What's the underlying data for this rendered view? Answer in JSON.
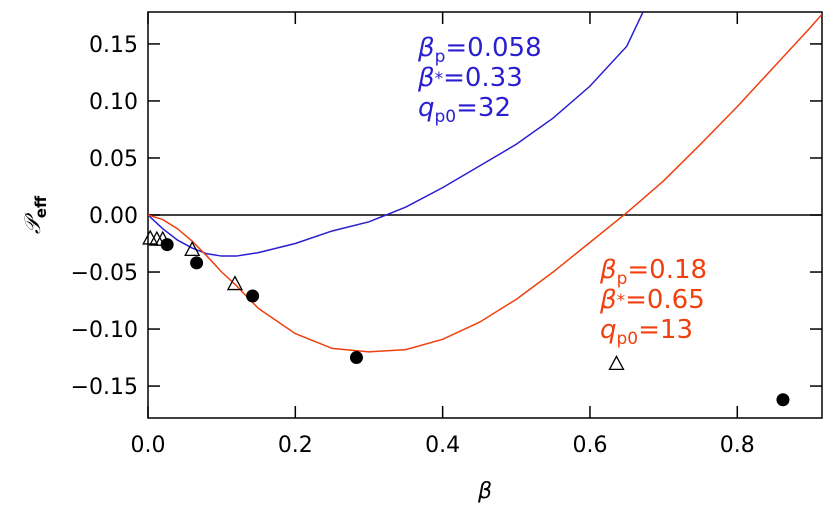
{
  "chart_data": {
    "type": "line",
    "xlabel": "β",
    "ylabel": {
      "symbol": "𝒫",
      "sub": "eff"
    },
    "xlim": [
      0,
      0.915
    ],
    "ylim": [
      -0.178,
      0.178
    ],
    "xticks": [
      {
        "value": 0,
        "label": "0.0"
      },
      0.2,
      0.4,
      0.6,
      0.8
    ],
    "yticks": [
      {
        "value": -0.15,
        "label": "−0.15"
      },
      {
        "value": -0.1,
        "label": "−0.10"
      },
      {
        "value": -0.05,
        "label": "−0.05"
      },
      {
        "value": 0,
        "label": "0.00"
      },
      {
        "value": 0.05,
        "label": "0.05"
      },
      {
        "value": 0.1,
        "label": "0.10"
      },
      0.15
    ],
    "hline": 0,
    "series": [
      {
        "kind": "line",
        "color": "#2a1fd0",
        "x": [
          0,
          0.02,
          0.04,
          0.06,
          0.08,
          0.1,
          0.12,
          0.15,
          0.2,
          0.25,
          0.3,
          0.35,
          0.4,
          0.45,
          0.5,
          0.55,
          0.6,
          0.65,
          0.672
        ],
        "values": [
          0,
          -0.012,
          -0.022,
          -0.029,
          -0.034,
          -0.036,
          -0.036,
          -0.033,
          -0.025,
          -0.014,
          -0.006,
          0.007,
          0.024,
          0.043,
          0.062,
          0.085,
          0.113,
          0.148,
          0.178
        ]
      },
      {
        "kind": "line",
        "color": "#f04010",
        "x": [
          0,
          0.02,
          0.04,
          0.06,
          0.08,
          0.1,
          0.12,
          0.15,
          0.2,
          0.25,
          0.3,
          0.35,
          0.4,
          0.45,
          0.5,
          0.55,
          0.6,
          0.65,
          0.7,
          0.75,
          0.8,
          0.85,
          0.9,
          0.915
        ],
        "values": [
          0,
          -0.004,
          -0.012,
          -0.023,
          -0.036,
          -0.05,
          -0.062,
          -0.082,
          -0.104,
          -0.117,
          -0.12,
          -0.118,
          -0.109,
          -0.094,
          -0.074,
          -0.05,
          -0.024,
          0.002,
          0.03,
          0.062,
          0.095,
          0.13,
          0.165,
          0.176
        ]
      },
      {
        "kind": "circle",
        "color": "#000000",
        "x": [
          0.026,
          0.066,
          0.142,
          0.283,
          0.862
        ],
        "values": [
          -0.026,
          -0.042,
          -0.071,
          -0.125,
          -0.162
        ]
      },
      {
        "kind": "triangle",
        "color": "#000000",
        "x": [
          0.003,
          0.012,
          0.02,
          0.06,
          0.118,
          0.636
        ],
        "values": [
          -0.021,
          -0.022,
          -0.022,
          -0.031,
          -0.061,
          -0.131
        ]
      }
    ],
    "annotations": [
      {
        "color": "#2a1fd0",
        "lines": [
          {
            "symbol": "β",
            "sub": "p",
            "text": "=0.058"
          },
          {
            "symbol": "β",
            "sub": "*",
            "text": "=0.33"
          },
          {
            "symbol": "q",
            "sub": "p0",
            "text": "=32"
          }
        ]
      },
      {
        "color": "#f04010",
        "lines": [
          {
            "symbol": "β",
            "sub": "p",
            "text": "=0.18"
          },
          {
            "symbol": "β",
            "sub": "*",
            "text": "=0.65"
          },
          {
            "symbol": "q",
            "sub": "p0",
            "text": "=13"
          }
        ]
      }
    ]
  }
}
